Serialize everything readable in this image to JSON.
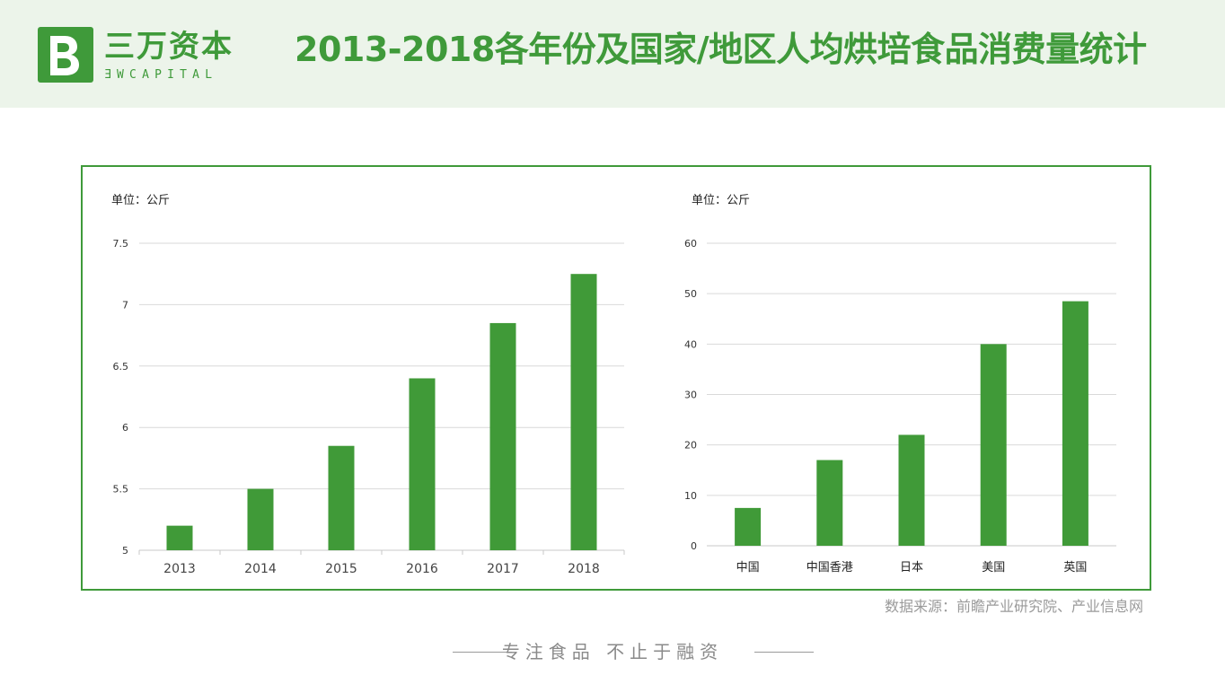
{
  "header": {
    "logo_cn": "三万资本",
    "logo_en": "ƎWCAPITAL",
    "title": "2013-2018各年份及国家/地区人均烘培食品消费量统计"
  },
  "colors": {
    "accent": "#3f9a3a",
    "bar": "#409a38",
    "header_bg": "#ecf4ea"
  },
  "chart_data": [
    {
      "type": "bar",
      "unit": "单位：公斤",
      "categories": [
        "2013",
        "2014",
        "2015",
        "2016",
        "2017",
        "2018"
      ],
      "values": [
        5.2,
        5.5,
        5.85,
        6.4,
        6.85,
        7.25
      ],
      "ylim": [
        5,
        7.5
      ],
      "yticks": [
        "5",
        "5.5",
        "6",
        "6.5",
        "7",
        "7.5"
      ],
      "grid": true
    },
    {
      "type": "bar",
      "unit": "单位：公斤",
      "categories": [
        "中国",
        "中国香港",
        "日本",
        "美国",
        "英国"
      ],
      "values": [
        7.5,
        17,
        22,
        40,
        48.5
      ],
      "ylim": [
        0,
        60
      ],
      "yticks": [
        "0",
        "10",
        "20",
        "30",
        "40",
        "50",
        "60"
      ],
      "grid": true
    }
  ],
  "footer": {
    "source": "数据来源：前瞻产业研究院、产业信息网",
    "slogan": "专注食品  不止于融资"
  }
}
